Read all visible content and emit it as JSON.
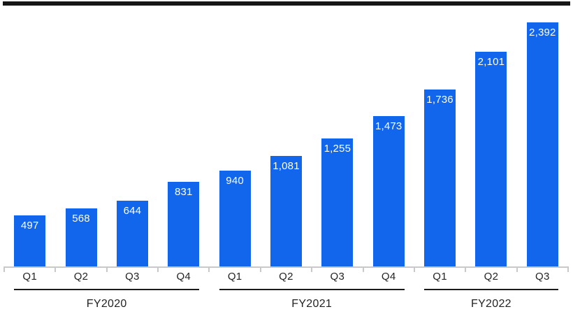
{
  "page": {
    "background": "#ffffff",
    "top_rule_color": "#161616"
  },
  "chart_data": {
    "type": "bar",
    "title": "",
    "xlabel": "",
    "ylabel": "",
    "ylim": [
      0,
      2392
    ],
    "grid": false,
    "legend": "none",
    "categories": [
      "Q1",
      "Q2",
      "Q3",
      "Q4",
      "Q1",
      "Q2",
      "Q3",
      "Q4",
      "Q1",
      "Q2",
      "Q3"
    ],
    "values": [
      497,
      568,
      644,
      831,
      940,
      1081,
      1255,
      1473,
      1736,
      2101,
      2392
    ],
    "value_labels": [
      "497",
      "568",
      "644",
      "831",
      "940",
      "1,081",
      "1,255",
      "1,473",
      "1,736",
      "2,101",
      "2,392"
    ],
    "groups": [
      {
        "label": "FY2020",
        "bars": [
          {
            "quarter": "Q1",
            "value": 497,
            "display": "497"
          },
          {
            "quarter": "Q2",
            "value": 568,
            "display": "568"
          },
          {
            "quarter": "Q3",
            "value": 644,
            "display": "644"
          },
          {
            "quarter": "Q4",
            "value": 831,
            "display": "831"
          }
        ]
      },
      {
        "label": "FY2021",
        "bars": [
          {
            "quarter": "Q1",
            "value": 940,
            "display": "940"
          },
          {
            "quarter": "Q2",
            "value": 1081,
            "display": "1,081"
          },
          {
            "quarter": "Q3",
            "value": 1255,
            "display": "1,255"
          },
          {
            "quarter": "Q4",
            "value": 1473,
            "display": "1,473"
          }
        ]
      },
      {
        "label": "FY2022",
        "bars": [
          {
            "quarter": "Q1",
            "value": 1736,
            "display": "1,736"
          },
          {
            "quarter": "Q2",
            "value": 2101,
            "display": "2,101"
          },
          {
            "quarter": "Q3",
            "value": 2392,
            "display": "2,392"
          }
        ]
      }
    ],
    "bar_color": "#1266EB",
    "value_label_color": "#ffffff",
    "axis_color": "#c9c9c9",
    "tick_label_color": "#232323",
    "group_line_color": "#1b1b1b"
  }
}
